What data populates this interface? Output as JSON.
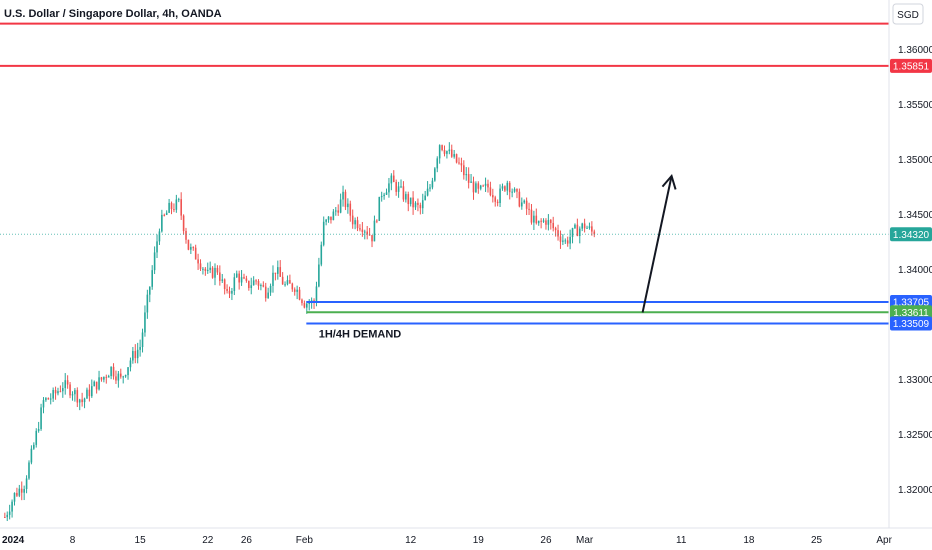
{
  "chart_data": {
    "type": "candlestick",
    "title": "U.S. Dollar / Singapore Dollar, 4h, OANDA",
    "currency": "SGD",
    "y_axis": {
      "min": 1.3165,
      "max": 1.3645,
      "ticks": [
        "1.36000",
        "1.35500",
        "1.35000",
        "1.34500",
        "1.34000",
        "1.33500",
        "1.33000",
        "1.32500",
        "1.32000"
      ],
      "tick_values": [
        1.36,
        1.355,
        1.35,
        1.345,
        1.34,
        1.335,
        1.33,
        1.325,
        1.32
      ]
    },
    "x_axis": {
      "labels": [
        "2024",
        "8",
        "15",
        "22",
        "26",
        "Feb",
        "12",
        "19",
        "26",
        "Mar",
        "11",
        "18",
        "25",
        "Apr"
      ],
      "label_days": [
        1,
        8,
        15,
        22,
        26,
        32,
        43,
        50,
        57,
        61,
        71,
        78,
        85,
        92
      ],
      "range_days": [
        0.5,
        92.5
      ]
    },
    "price_levels": [
      {
        "name": "resistance-upper",
        "price": 1.36235,
        "color": "#f23645",
        "label": ""
      },
      {
        "name": "resistance-lower",
        "price": 1.35851,
        "color": "#f23645",
        "label": "1.35851"
      },
      {
        "name": "zone-top",
        "price": 1.33705,
        "color": "#2962ff",
        "label": "1.33705"
      },
      {
        "name": "zone-mid",
        "price": 1.33611,
        "color": "#4caf50",
        "label": "1.33611"
      },
      {
        "name": "zone-bottom",
        "price": 1.33509,
        "color": "#2962ff",
        "label": "1.33509"
      }
    ],
    "current_price": {
      "price": 1.3432,
      "label": "1.34320",
      "color": "#26a69a"
    },
    "annotation": {
      "text": "1H/4H DEMAND",
      "day": 34,
      "price": 1.3342
    },
    "arrow": {
      "from": {
        "day": 67,
        "price": 1.3361
      },
      "to": {
        "day": 70,
        "price": 1.3485
      }
    },
    "colors": {
      "up": "#26a69a",
      "down": "#ef5350"
    },
    "path_keypoints": [
      [
        1,
        1.3175
      ],
      [
        2,
        1.3195
      ],
      [
        3,
        1.3205
      ],
      [
        4,
        1.324
      ],
      [
        5,
        1.328
      ],
      [
        6,
        1.3285
      ],
      [
        7,
        1.3295
      ],
      [
        8,
        1.329
      ],
      [
        9,
        1.328
      ],
      [
        10,
        1.3292
      ],
      [
        11,
        1.33
      ],
      [
        12,
        1.331
      ],
      [
        13,
        1.33
      ],
      [
        14,
        1.3318
      ],
      [
        15,
        1.333
      ],
      [
        16,
        1.3385
      ],
      [
        17,
        1.344
      ],
      [
        18,
        1.3455
      ],
      [
        19,
        1.346
      ],
      [
        20,
        1.342
      ],
      [
        21,
        1.341
      ],
      [
        22,
        1.3395
      ],
      [
        23,
        1.34
      ],
      [
        24,
        1.3375
      ],
      [
        25,
        1.3395
      ],
      [
        26,
        1.3385
      ],
      [
        27,
        1.339
      ],
      [
        28,
        1.338
      ],
      [
        29,
        1.34
      ],
      [
        30,
        1.3385
      ],
      [
        31,
        1.3385
      ],
      [
        32,
        1.337
      ],
      [
        33,
        1.337
      ],
      [
        34,
        1.344
      ],
      [
        35,
        1.345
      ],
      [
        36,
        1.3465
      ],
      [
        37,
        1.3445
      ],
      [
        38,
        1.344
      ],
      [
        39,
        1.343
      ],
      [
        40,
        1.347
      ],
      [
        41,
        1.348
      ],
      [
        42,
        1.347
      ],
      [
        43,
        1.346
      ],
      [
        44,
        1.3455
      ],
      [
        45,
        1.3475
      ],
      [
        46,
        1.3515
      ],
      [
        47,
        1.3505
      ],
      [
        48,
        1.3495
      ],
      [
        49,
        1.348
      ],
      [
        50,
        1.347
      ],
      [
        51,
        1.3475
      ],
      [
        52,
        1.3465
      ],
      [
        53,
        1.348
      ],
      [
        54,
        1.3465
      ],
      [
        55,
        1.3455
      ],
      [
        56,
        1.344
      ],
      [
        57,
        1.3445
      ],
      [
        58,
        1.3435
      ],
      [
        59,
        1.3425
      ],
      [
        60,
        1.3435
      ],
      [
        61,
        1.344
      ],
      [
        62,
        1.3432
      ]
    ]
  }
}
